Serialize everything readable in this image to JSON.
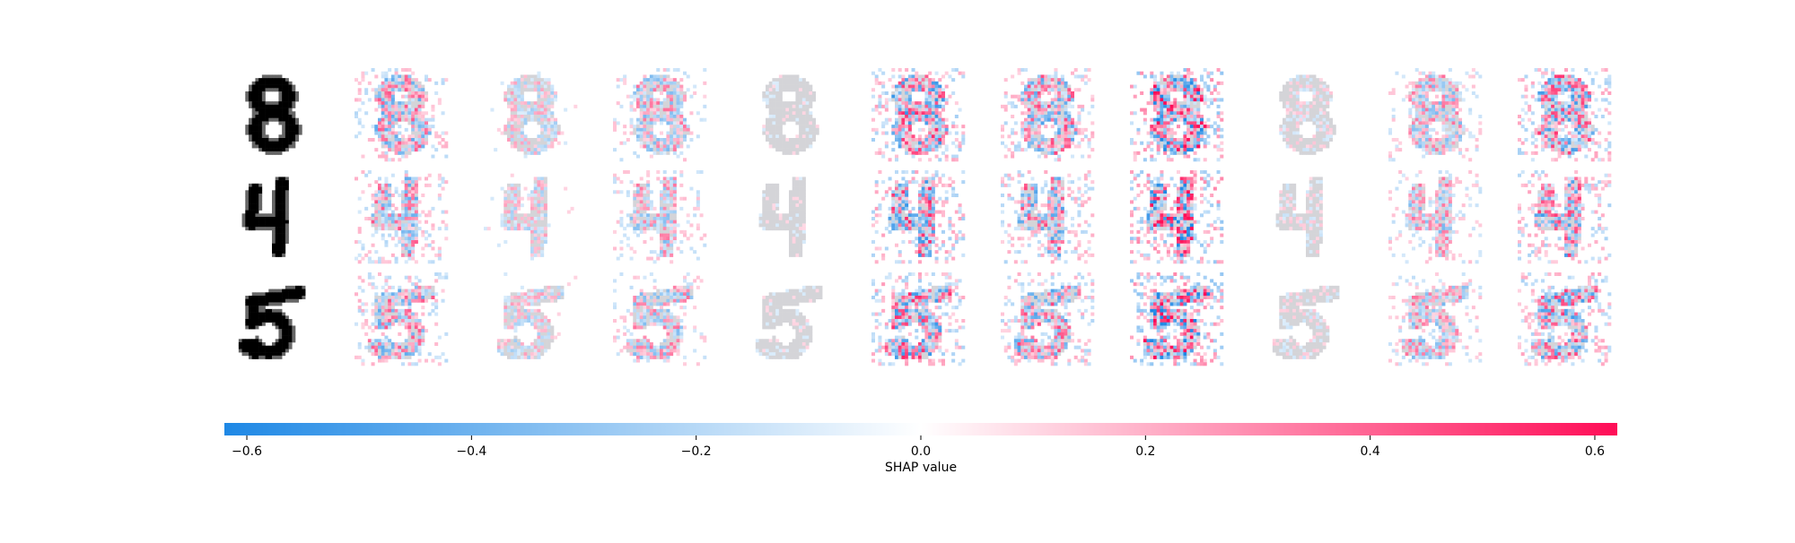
{
  "chart_data": {
    "type": "heatmap",
    "title": "",
    "rows": [
      {
        "digit": "8",
        "panels": 10
      },
      {
        "digit": "4",
        "panels": 10
      },
      {
        "digit": "5",
        "panels": 10
      }
    ],
    "colorbar": {
      "label": "SHAP value",
      "range": [
        -0.62,
        0.62
      ],
      "ticks": [
        -0.6,
        -0.4,
        -0.2,
        0.0,
        0.2,
        0.4,
        0.6
      ],
      "tick_labels": [
        "−0.6",
        "−0.4",
        "−0.2",
        "0.0",
        "0.2",
        "0.4",
        "0.6"
      ],
      "color_negative": "#1e88e5",
      "color_zero": "#ffffff",
      "color_positive": "#ff0d57"
    },
    "input_color": "#000000",
    "background_digit_color": "#d4d4d8"
  }
}
